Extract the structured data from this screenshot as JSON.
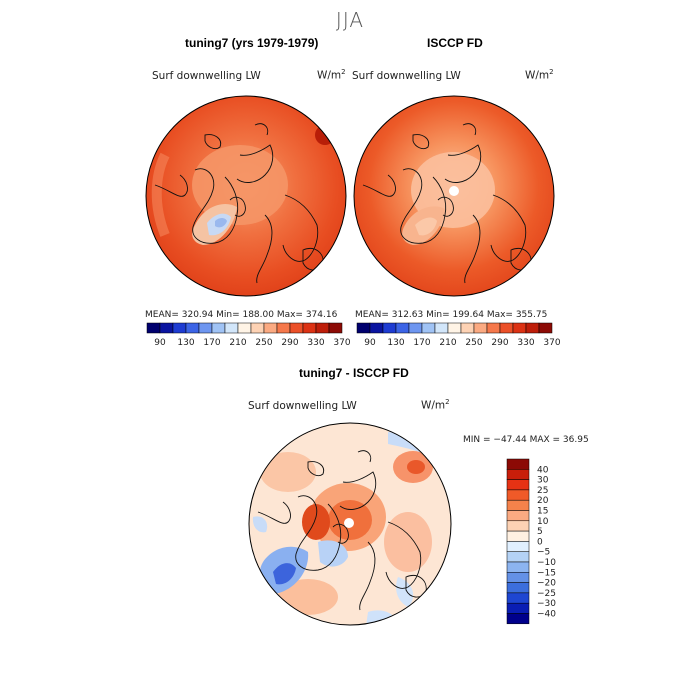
{
  "season": "JJA",
  "panels": [
    {
      "title": "tuning7 (yrs 1979-1979)",
      "field": "Surf downwelling LW",
      "units": "W/m",
      "units_exp": "2",
      "stats": "MEAN= 320.94   Min= 188.00   Max= 374.16",
      "pole_hole": false
    },
    {
      "title": "ISCCP FD",
      "field": "Surf downwelling LW",
      "units": "W/m",
      "units_exp": "2",
      "stats": "MEAN= 312.63   Min= 199.64   Max= 355.75",
      "pole_hole": true
    }
  ],
  "abs_colorbar": {
    "colors": [
      "#00006e",
      "#0a14a0",
      "#1e3cd2",
      "#3c64e6",
      "#6e96f0",
      "#a0c3f5",
      "#d2e6fa",
      "#fff4e6",
      "#fdd2b4",
      "#fbaa82",
      "#f5784b",
      "#eb5028",
      "#dc3214",
      "#be1e0a",
      "#8c0a05"
    ],
    "labels": [
      "90",
      "130",
      "170",
      "210",
      "250",
      "290",
      "330",
      "370"
    ]
  },
  "diff_panel": {
    "title": "tuning7 - ISCCP FD",
    "field": "Surf downwelling LW",
    "units": "W/m",
    "units_exp": "2",
    "minmax": "MIN = −47.44 MAX =  36.95",
    "pole_hole": true
  },
  "diff_colorbar": {
    "colors": [
      "#8c0a05",
      "#c81e0a",
      "#e63214",
      "#f05a28",
      "#f5824b",
      "#fbaa82",
      "#fdd2b4",
      "#fff0e1",
      "#e1f0ff",
      "#b4d2f5",
      "#8cb4f0",
      "#6491e6",
      "#3c6edc",
      "#1e46d2",
      "#0a1eb4",
      "#00008c"
    ],
    "labels": [
      "40",
      "30",
      "25",
      "20",
      "15",
      "10",
      "5",
      "0",
      "−5",
      "−10",
      "−15",
      "−20",
      "−25",
      "−30",
      "−40"
    ]
  }
}
